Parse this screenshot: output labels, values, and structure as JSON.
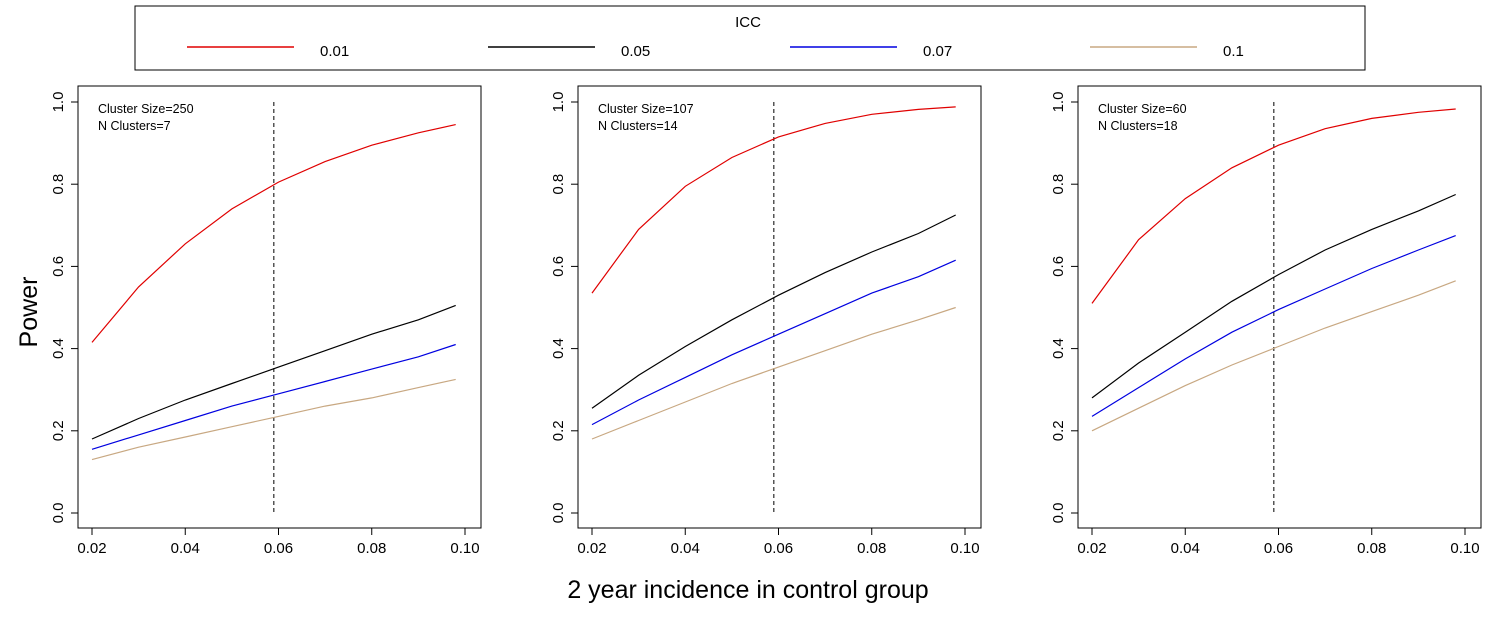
{
  "figure": {
    "ylabel": "Power",
    "xlabel": "2 year incidence in control group"
  },
  "legend": {
    "title": "ICC",
    "entries": [
      {
        "label": "0.01",
        "color": "#e00000"
      },
      {
        "label": "0.05",
        "color": "#000000"
      },
      {
        "label": "0.07",
        "color": "#0000e0"
      },
      {
        "label": "0.1",
        "color": "#c8a882"
      }
    ]
  },
  "chart_data": [
    {
      "type": "line",
      "annotation": [
        "Cluster Size=250",
        "N Clusters=7"
      ],
      "xlim": [
        0.02,
        0.1
      ],
      "ylim": [
        0.0,
        1.0
      ],
      "xticks": [
        "0.02",
        "0.04",
        "0.06",
        "0.08",
        "0.10"
      ],
      "yticks": [
        "0.0",
        "0.2",
        "0.4",
        "0.6",
        "0.8",
        "1.0"
      ],
      "reference_line_x": 0.059,
      "x": [
        0.02,
        0.03,
        0.04,
        0.05,
        0.06,
        0.07,
        0.08,
        0.09,
        0.098
      ],
      "series": [
        {
          "legend_index": 0,
          "values": [
            0.415,
            0.55,
            0.655,
            0.74,
            0.805,
            0.855,
            0.895,
            0.925,
            0.945
          ]
        },
        {
          "legend_index": 1,
          "values": [
            0.18,
            0.23,
            0.275,
            0.315,
            0.355,
            0.395,
            0.435,
            0.47,
            0.505
          ]
        },
        {
          "legend_index": 2,
          "values": [
            0.155,
            0.19,
            0.225,
            0.26,
            0.29,
            0.32,
            0.35,
            0.38,
            0.41
          ]
        },
        {
          "legend_index": 3,
          "values": [
            0.13,
            0.16,
            0.185,
            0.21,
            0.235,
            0.26,
            0.28,
            0.305,
            0.325
          ]
        }
      ]
    },
    {
      "type": "line",
      "annotation": [
        "Cluster Size=107",
        "N Clusters=14"
      ],
      "xlim": [
        0.02,
        0.1
      ],
      "ylim": [
        0.0,
        1.0
      ],
      "xticks": [
        "0.02",
        "0.04",
        "0.06",
        "0.08",
        "0.10"
      ],
      "yticks": [
        "0.0",
        "0.2",
        "0.4",
        "0.6",
        "0.8",
        "1.0"
      ],
      "reference_line_x": 0.059,
      "x": [
        0.02,
        0.03,
        0.04,
        0.05,
        0.06,
        0.07,
        0.08,
        0.09,
        0.098
      ],
      "series": [
        {
          "legend_index": 0,
          "values": [
            0.535,
            0.69,
            0.795,
            0.865,
            0.915,
            0.948,
            0.97,
            0.982,
            0.988
          ]
        },
        {
          "legend_index": 1,
          "values": [
            0.255,
            0.335,
            0.405,
            0.47,
            0.53,
            0.585,
            0.635,
            0.68,
            0.725
          ]
        },
        {
          "legend_index": 2,
          "values": [
            0.215,
            0.275,
            0.33,
            0.385,
            0.435,
            0.485,
            0.535,
            0.575,
            0.615
          ]
        },
        {
          "legend_index": 3,
          "values": [
            0.18,
            0.225,
            0.27,
            0.315,
            0.355,
            0.395,
            0.435,
            0.47,
            0.5
          ]
        }
      ]
    },
    {
      "type": "line",
      "annotation": [
        "Cluster Size=60",
        "N Clusters=18"
      ],
      "xlim": [
        0.02,
        0.1
      ],
      "ylim": [
        0.0,
        1.0
      ],
      "xticks": [
        "0.02",
        "0.04",
        "0.06",
        "0.08",
        "0.10"
      ],
      "yticks": [
        "0.0",
        "0.2",
        "0.4",
        "0.6",
        "0.8",
        "1.0"
      ],
      "reference_line_x": 0.059,
      "x": [
        0.02,
        0.03,
        0.04,
        0.05,
        0.06,
        0.07,
        0.08,
        0.09,
        0.098
      ],
      "series": [
        {
          "legend_index": 0,
          "values": [
            0.51,
            0.665,
            0.765,
            0.84,
            0.895,
            0.935,
            0.96,
            0.975,
            0.983
          ]
        },
        {
          "legend_index": 1,
          "values": [
            0.28,
            0.365,
            0.44,
            0.515,
            0.58,
            0.64,
            0.69,
            0.735,
            0.775
          ]
        },
        {
          "legend_index": 2,
          "values": [
            0.235,
            0.305,
            0.375,
            0.44,
            0.495,
            0.545,
            0.595,
            0.64,
            0.675
          ]
        },
        {
          "legend_index": 3,
          "values": [
            0.2,
            0.255,
            0.31,
            0.36,
            0.405,
            0.45,
            0.49,
            0.53,
            0.565
          ]
        }
      ]
    }
  ]
}
